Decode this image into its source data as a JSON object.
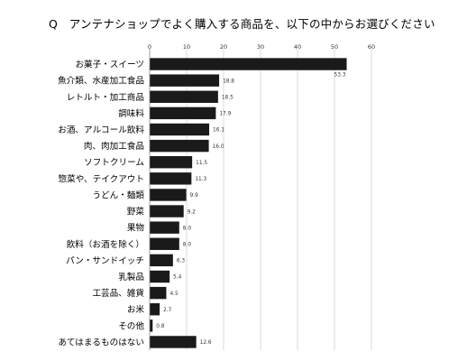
{
  "chart_data": {
    "type": "bar",
    "orientation": "horizontal",
    "title": "Q　アンテナショップでよく購入する商品を、以下の中からお選びください",
    "categories": [
      "お菓子・スイーツ",
      "魚介類、水産加工食品",
      "レトルト・加工商品",
      "調味料",
      "お酒、アルコール飲料",
      "肉、肉加工食品",
      "ソフトクリーム",
      "惣菜や、テイクアウト",
      "うどん・麺類",
      "野菜",
      "果物",
      "飲料（お酒を除く）",
      "パン・サンドイッチ",
      "乳製品",
      "工芸品、雑貨",
      "お米",
      "その他",
      "あてはまるものはない"
    ],
    "values": [
      53.3,
      18.8,
      18.5,
      17.9,
      16.1,
      16.0,
      11.5,
      11.3,
      9.9,
      9.2,
      8.0,
      8.0,
      6.3,
      5.4,
      4.5,
      2.7,
      0.8,
      12.6
    ],
    "value_labels": [
      "53.3",
      "18.8",
      "18.5",
      "17.9",
      "16.1",
      "16.0",
      "11.5",
      "11.3",
      "9.9",
      "9.2",
      "8.0",
      "8.0",
      "6.3",
      "5.4",
      "4.5",
      "2.7",
      "0.8",
      "12.6"
    ],
    "xlim": [
      0,
      60
    ],
    "ticks": [
      0,
      10,
      20,
      30,
      40,
      50,
      60
    ],
    "xlabel": "",
    "ylabel": "",
    "grid": true,
    "legend": "none",
    "bar_color": "#1a1a1a",
    "grid_color": "#d0d0d0"
  }
}
